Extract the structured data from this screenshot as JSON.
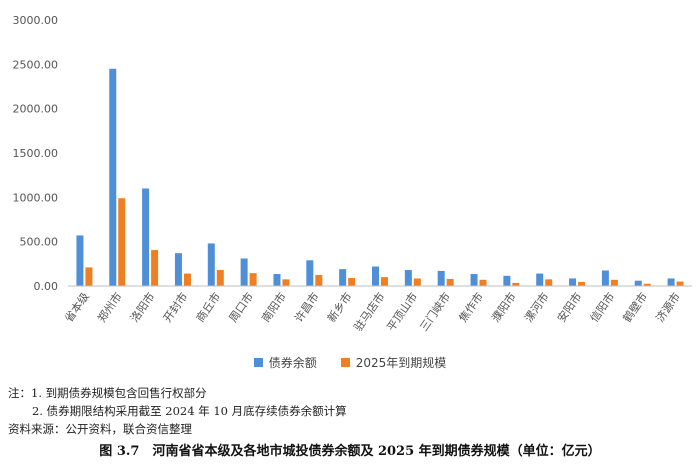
{
  "chart_data": {
    "type": "bar",
    "categories": [
      "省本级",
      "郑州市",
      "洛阳市",
      "开封市",
      "商丘市",
      "周口市",
      "南阳市",
      "许昌市",
      "新乡市",
      "驻马店市",
      "平顶山市",
      "三门峡市",
      "焦作市",
      "濮阳市",
      "漯河市",
      "安阳市",
      "信阳市",
      "鹤壁市",
      "济源市"
    ],
    "series": [
      {
        "name": "债券余额",
        "color": "#4f8fd8",
        "values": [
          570,
          2450,
          1100,
          370,
          480,
          310,
          135,
          290,
          190,
          220,
          180,
          170,
          135,
          115,
          140,
          85,
          175,
          60,
          85
        ]
      },
      {
        "name": "2025年到期规模",
        "color": "#f07f23",
        "values": [
          210,
          990,
          405,
          140,
          180,
          145,
          75,
          125,
          90,
          100,
          85,
          80,
          70,
          35,
          75,
          45,
          70,
          25,
          50
        ]
      }
    ],
    "ylim": [
      0,
      3000
    ],
    "yticks": [
      "0.00",
      "500.00",
      "1000.00",
      "1500.00",
      "2000.00",
      "2500.00",
      "3000.00"
    ],
    "ytick_values": [
      0,
      500,
      1000,
      1500,
      2000,
      2500,
      3000
    ],
    "grid": false,
    "legend_position": "bottom"
  },
  "notes": {
    "line1": "注：1. 到期债券规模包含回售行权部分",
    "line2": "2. 债券期限结构采用截至 2024 年 10 月底存续债券余额计算",
    "line3": "资料来源：公开资料，联合资信整理"
  },
  "caption": "图 3.7　河南省省本级及各地市城投债券余额及 2025 年到期债券规模（单位：亿元）"
}
